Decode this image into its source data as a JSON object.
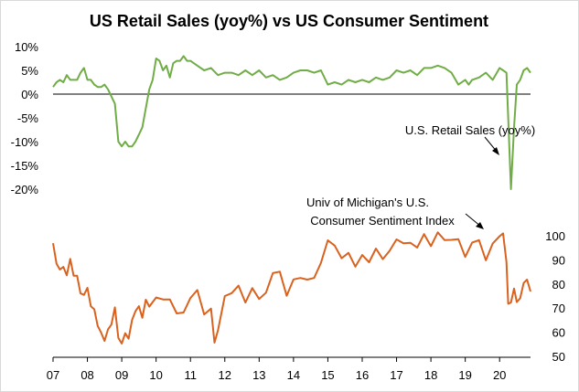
{
  "chart_data": {
    "type": "line",
    "title": "US Retail Sales (yoy%) vs US Consumer Sentiment",
    "x_tick_labels": [
      "07",
      "08",
      "09",
      "10",
      "11",
      "12",
      "13",
      "14",
      "15",
      "16",
      "17",
      "18",
      "19",
      "20"
    ],
    "x_range": [
      2007.0,
      2020.9
    ],
    "colors": {
      "retail": "#70ad47",
      "sentiment": "#d9621f",
      "axis": "#000000"
    },
    "retail_axis": {
      "ylim": [
        -20,
        10
      ],
      "tick_values": [
        10,
        5,
        0,
        -5,
        -10,
        -15,
        -20
      ],
      "tick_labels": [
        "10%",
        "5%",
        "0%",
        "-5%",
        "-10%",
        "-15%",
        "-20%"
      ]
    },
    "sentiment_axis": {
      "ylim": [
        50,
        100
      ],
      "tick_values": [
        100,
        90,
        80,
        70,
        60,
        50
      ],
      "tick_labels": [
        "100",
        "90",
        "80",
        "70",
        "60",
        "50"
      ]
    },
    "annotations": [
      {
        "lines": [
          "U.S. Retail Sales (yoy%)"
        ]
      },
      {
        "lines": [
          "Univ of Michigan's U.S.",
          "Consumer Sentiment Index"
        ]
      }
    ],
    "series": [
      {
        "name": "U.S. Retail Sales (yoy%)",
        "axis": "left",
        "x": [
          2007.0,
          2007.1,
          2007.2,
          2007.3,
          2007.4,
          2007.5,
          2007.6,
          2007.7,
          2007.8,
          2007.9,
          2008.0,
          2008.1,
          2008.2,
          2008.3,
          2008.4,
          2008.5,
          2008.6,
          2008.7,
          2008.8,
          2008.9,
          2009.0,
          2009.1,
          2009.2,
          2009.3,
          2009.4,
          2009.5,
          2009.6,
          2009.7,
          2009.8,
          2009.9,
          2010.0,
          2010.1,
          2010.2,
          2010.3,
          2010.4,
          2010.5,
          2010.6,
          2010.7,
          2010.8,
          2010.9,
          2011.0,
          2011.2,
          2011.4,
          2011.6,
          2011.8,
          2012.0,
          2012.2,
          2012.4,
          2012.6,
          2012.8,
          2013.0,
          2013.2,
          2013.4,
          2013.6,
          2013.8,
          2014.0,
          2014.2,
          2014.4,
          2014.6,
          2014.8,
          2015.0,
          2015.2,
          2015.4,
          2015.6,
          2015.8,
          2016.0,
          2016.2,
          2016.4,
          2016.6,
          2016.8,
          2017.0,
          2017.2,
          2017.4,
          2017.6,
          2017.8,
          2018.0,
          2018.2,
          2018.4,
          2018.6,
          2018.8,
          2019.0,
          2019.1,
          2019.2,
          2019.4,
          2019.6,
          2019.8,
          2020.0,
          2020.1,
          2020.2,
          2020.25,
          2020.33,
          2020.42,
          2020.5,
          2020.6,
          2020.7,
          2020.8,
          2020.9
        ],
        "values": [
          1.5,
          2.5,
          3,
          2.5,
          4,
          3,
          3,
          3,
          4.5,
          5.5,
          3,
          3,
          2,
          1.5,
          1.5,
          2,
          1,
          -0.5,
          -2,
          -10,
          -11,
          -10,
          -11,
          -11,
          -10,
          -8.5,
          -7,
          -3,
          1,
          3,
          7.5,
          7,
          5,
          6,
          3.5,
          6.5,
          7,
          7,
          8,
          7,
          7,
          6,
          5,
          5.5,
          4,
          4.5,
          4.5,
          4,
          5,
          4,
          5,
          3.5,
          4,
          3,
          3.5,
          4.5,
          5,
          5,
          4.5,
          5,
          2,
          2.5,
          2,
          3,
          2.5,
          3,
          2.5,
          3.5,
          3,
          3.5,
          5,
          4.5,
          5,
          4,
          5.5,
          5.5,
          6,
          5.5,
          4.5,
          2,
          3,
          2,
          3,
          3.5,
          4.5,
          3,
          5.5,
          5,
          4.5,
          -5,
          -20,
          -7,
          2,
          3,
          5,
          5.5,
          4.5
        ]
      },
      {
        "name": "Univ of Michigan's U.S. Consumer Sentiment Index",
        "axis": "right",
        "x": [
          2007.0,
          2007.1,
          2007.2,
          2007.3,
          2007.4,
          2007.5,
          2007.6,
          2007.7,
          2007.8,
          2007.9,
          2008.0,
          2008.1,
          2008.2,
          2008.3,
          2008.4,
          2008.5,
          2008.6,
          2008.7,
          2008.8,
          2008.9,
          2009.0,
          2009.1,
          2009.2,
          2009.3,
          2009.4,
          2009.5,
          2009.6,
          2009.7,
          2009.8,
          2009.9,
          2010.0,
          2010.2,
          2010.4,
          2010.6,
          2010.8,
          2011.0,
          2011.2,
          2011.4,
          2011.6,
          2011.7,
          2011.8,
          2012.0,
          2012.2,
          2012.4,
          2012.6,
          2012.8,
          2013.0,
          2013.2,
          2013.4,
          2013.6,
          2013.8,
          2014.0,
          2014.2,
          2014.4,
          2014.6,
          2014.8,
          2015.0,
          2015.2,
          2015.4,
          2015.6,
          2015.8,
          2016.0,
          2016.2,
          2016.4,
          2016.6,
          2016.8,
          2017.0,
          2017.2,
          2017.4,
          2017.6,
          2017.8,
          2018.0,
          2018.2,
          2018.4,
          2018.6,
          2018.8,
          2019.0,
          2019.2,
          2019.4,
          2019.6,
          2019.8,
          2020.0,
          2020.1,
          2020.2,
          2020.25,
          2020.33,
          2020.42,
          2020.5,
          2020.6,
          2020.7,
          2020.8,
          2020.9
        ],
        "values": [
          96.9,
          88.4,
          86,
          87.1,
          83.6,
          90.4,
          83.4,
          83.4,
          76.1,
          75.5,
          78.4,
          70.8,
          69.5,
          62.6,
          59.8,
          56.4,
          61.2,
          63.2,
          70.3,
          57.6,
          55.3,
          59.6,
          57.3,
          65.1,
          68.7,
          70.8,
          66,
          73.5,
          70.6,
          72.5,
          74.4,
          73.6,
          73.6,
          67.8,
          68.2,
          74.2,
          77.5,
          67.4,
          69.8,
          55.7,
          60.8,
          75,
          76.2,
          79.3,
          72.3,
          78.3,
          73.8,
          76.4,
          84.5,
          85.1,
          75.1,
          81.9,
          82.5,
          81.8,
          82.5,
          88.8,
          98.1,
          95.9,
          90.7,
          92.9,
          87.2,
          92,
          89,
          94.7,
          90.3,
          93.8,
          98.5,
          96.9,
          97.1,
          95.1,
          100.7,
          95.7,
          101.4,
          98.2,
          98.3,
          98.6,
          91.2,
          97.2,
          98.2,
          89.8,
          96.8,
          99.8,
          101,
          89.1,
          71.8,
          72.3,
          78.1,
          72.5,
          74.1,
          80.4,
          81.8,
          76.9
        ]
      }
    ]
  }
}
